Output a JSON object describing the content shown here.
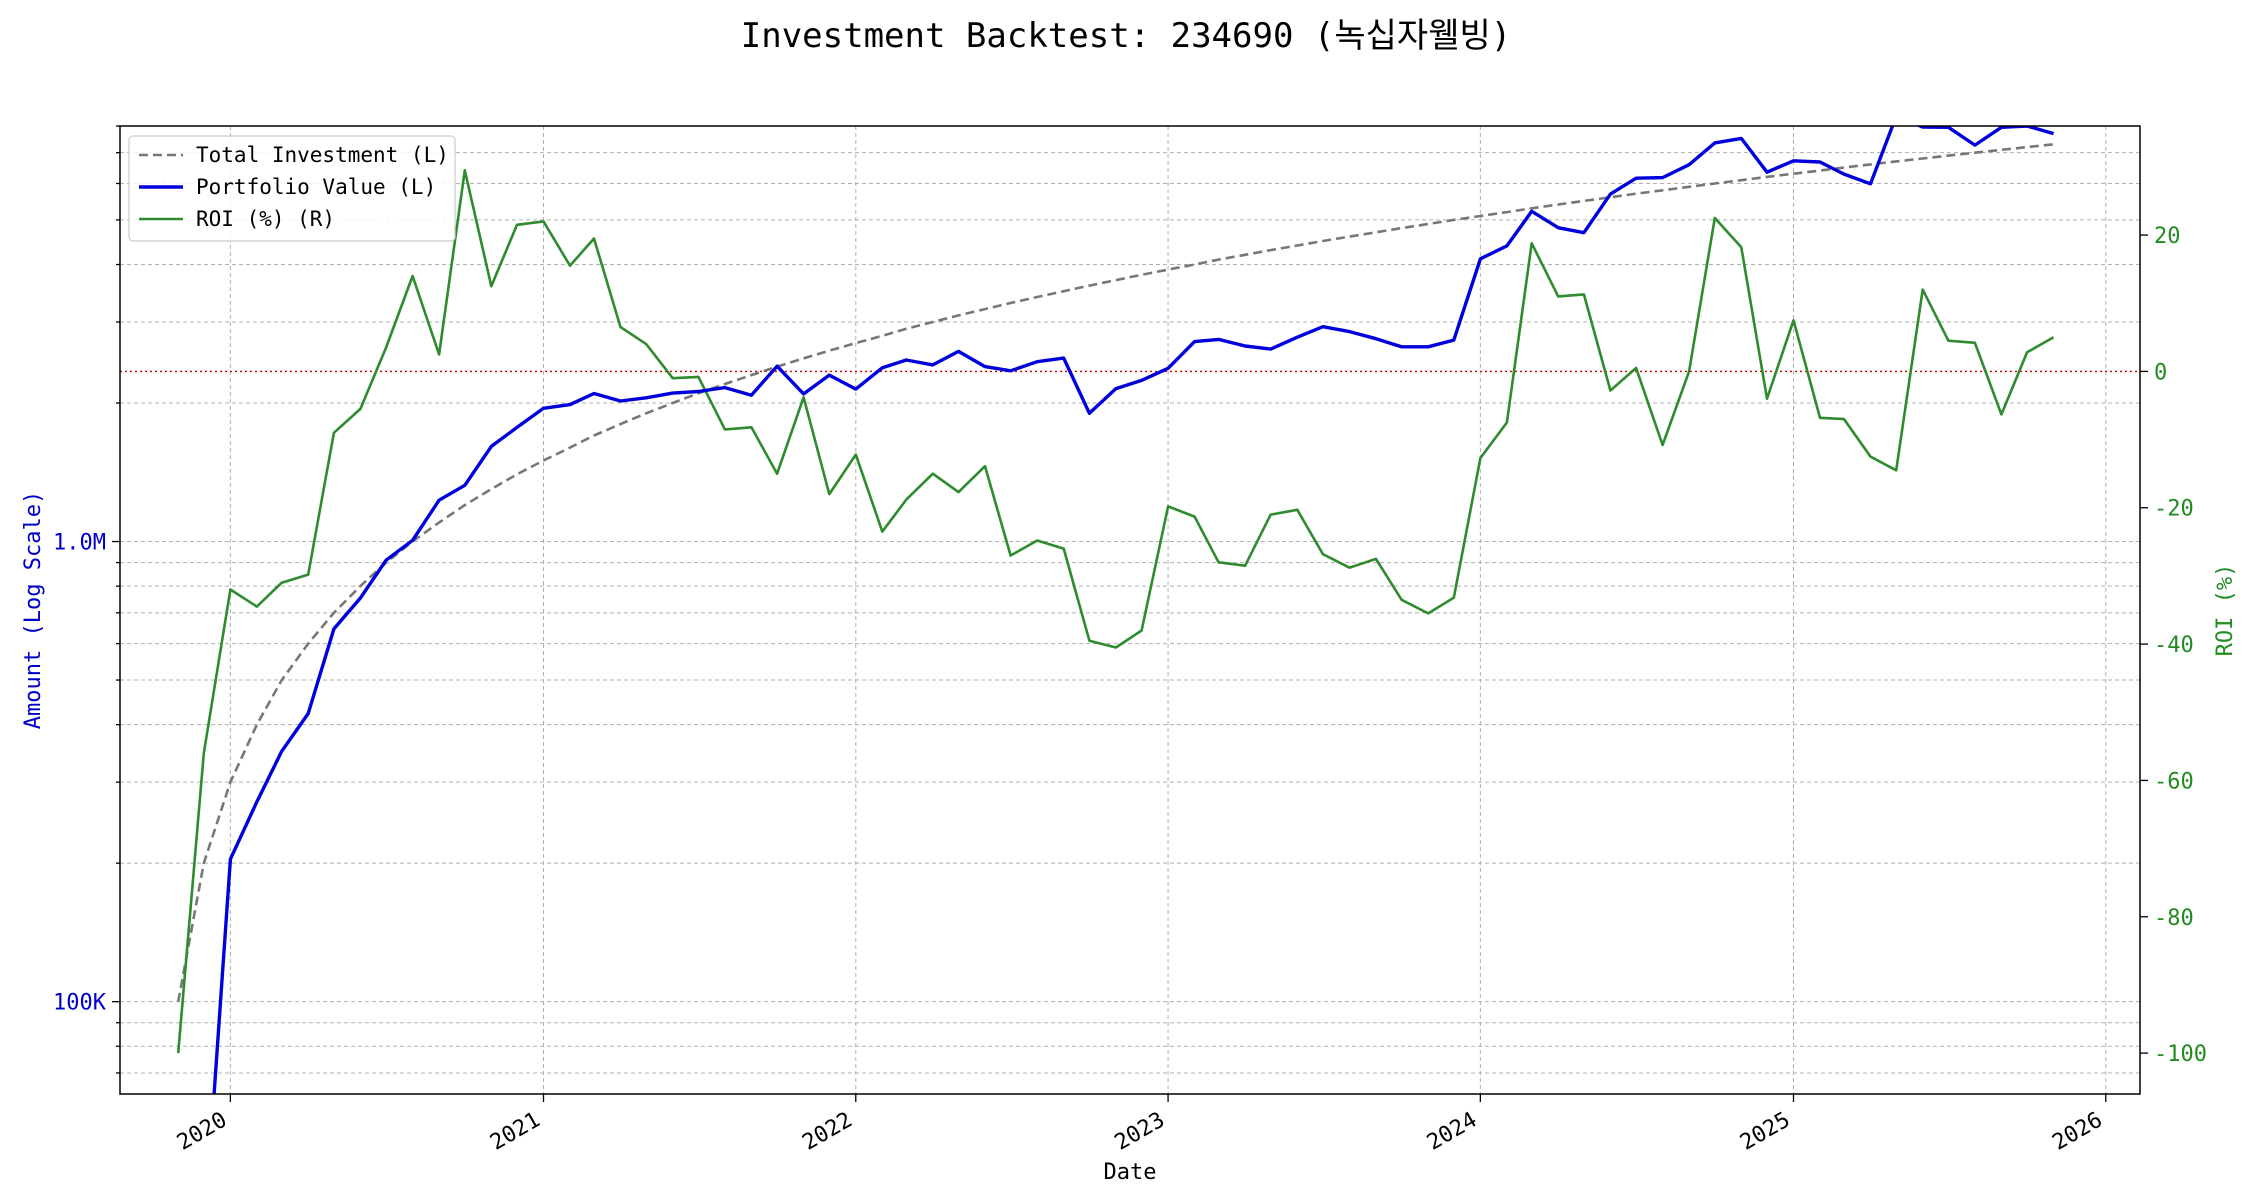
{
  "chart_data": {
    "type": "line",
    "title": "Investment Backtest: 234690 (녹십자웰빙)",
    "xlabel": "Date",
    "ylabel_left": "Amount (Log Scale)",
    "ylabel_right": "ROI (%)",
    "x_ticks": [
      "2020",
      "2021",
      "2022",
      "2023",
      "2024",
      "2025",
      "2026"
    ],
    "xlim": [
      "2019-08-25",
      "2026-02-10"
    ],
    "left_axis": {
      "scale": "log",
      "ylim": [
        63000,
        8000000
      ],
      "tick_labels": [
        {
          "value": 100000,
          "label": "100K"
        },
        {
          "value": 1000000,
          "label": "1.0M"
        }
      ],
      "color": "#0000cc"
    },
    "right_axis": {
      "scale": "linear",
      "ylim": [
        -106,
        36
      ],
      "ticks": [
        -100,
        -80,
        -60,
        -40,
        -20,
        0,
        20
      ],
      "color": "#228B22"
    },
    "zero_line": {
      "axis": "right",
      "value": 0,
      "color": "#cc0000"
    },
    "grid": true,
    "legend": {
      "position": "top-left",
      "entries": [
        {
          "label": "Total Investment (L)",
          "color": "#777777",
          "style": "dashed"
        },
        {
          "label": "Portfolio Value (L)",
          "color": "#0000dd",
          "style": "solid"
        },
        {
          "label": "ROI (%) (R)",
          "color": "#2e8b2e",
          "style": "solid"
        }
      ]
    },
    "series": [
      {
        "name": "Total Investment (L)",
        "axis": "left",
        "color": "#777777",
        "dashed": true,
        "x": [
          "2019-11-01",
          "2019-12-01",
          "2020-01-01",
          "2020-02-01",
          "2020-03-01",
          "2020-04-01",
          "2020-05-01",
          "2020-06-01",
          "2020-07-01",
          "2020-08-01",
          "2020-09-01",
          "2020-10-01",
          "2020-11-01",
          "2020-12-01",
          "2021-01-01",
          "2021-02-01",
          "2021-03-01",
          "2021-04-01",
          "2021-05-01",
          "2021-06-01",
          "2021-07-01",
          "2021-08-01",
          "2021-09-01",
          "2021-10-01",
          "2021-11-01",
          "2021-12-01",
          "2022-01-01",
          "2022-02-01",
          "2022-03-01",
          "2022-04-01",
          "2022-05-01",
          "2022-06-01",
          "2022-07-01",
          "2022-08-01",
          "2022-09-01",
          "2022-10-01",
          "2022-11-01",
          "2022-12-01",
          "2023-01-01",
          "2023-02-01",
          "2023-03-01",
          "2023-04-01",
          "2023-05-01",
          "2023-06-01",
          "2023-07-01",
          "2023-08-01",
          "2023-09-01",
          "2023-10-01",
          "2023-11-01",
          "2023-12-01",
          "2024-01-01",
          "2024-02-01",
          "2024-03-01",
          "2024-04-01",
          "2024-05-01",
          "2024-06-01",
          "2024-07-01",
          "2024-08-01",
          "2024-09-01",
          "2024-10-01",
          "2024-11-01",
          "2024-12-01",
          "2025-01-01",
          "2025-02-01",
          "2025-03-01",
          "2025-04-01",
          "2025-05-01",
          "2025-06-01",
          "2025-07-01",
          "2025-08-01",
          "2025-09-01",
          "2025-10-01",
          "2025-11-01"
        ],
        "values": [
          100000,
          200000,
          300000,
          400000,
          500000,
          600000,
          700000,
          800000,
          900000,
          1000000,
          1100000,
          1200000,
          1300000,
          1400000,
          1500000,
          1600000,
          1700000,
          1800000,
          1900000,
          2000000,
          2100000,
          2200000,
          2300000,
          2400000,
          2500000,
          2600000,
          2700000,
          2800000,
          2900000,
          3000000,
          3100000,
          3200000,
          3300000,
          3400000,
          3500000,
          3600000,
          3700000,
          3800000,
          3900000,
          4000000,
          4100000,
          4200000,
          4300000,
          4400000,
          4500000,
          4600000,
          4700000,
          4800000,
          4900000,
          5000000,
          5100000,
          5200000,
          5300000,
          5400000,
          5500000,
          5600000,
          5700000,
          5800000,
          5900000,
          6000000,
          6100000,
          6200000,
          6300000,
          6400000,
          6500000,
          6600000,
          6700000,
          6800000,
          6900000,
          7000000,
          7100000,
          7200000,
          7300000
        ]
      },
      {
        "name": "Portfolio Value (L)",
        "axis": "left",
        "color": "#0000dd",
        "dashed": false,
        "x": [
          "2019-11-01",
          "2019-12-01",
          "2020-01-01",
          "2020-02-01",
          "2020-03-01",
          "2020-04-01",
          "2020-05-01",
          "2020-06-01",
          "2020-07-01",
          "2020-08-01",
          "2020-09-01",
          "2020-10-01",
          "2020-11-01",
          "2020-12-01",
          "2021-01-01",
          "2021-02-01",
          "2021-03-01",
          "2021-04-01",
          "2021-05-01",
          "2021-06-01",
          "2021-07-01",
          "2021-08-01",
          "2021-09-01",
          "2021-10-01",
          "2021-11-01",
          "2021-12-01",
          "2022-01-01",
          "2022-02-01",
          "2022-03-01",
          "2022-04-01",
          "2022-05-01",
          "2022-06-01",
          "2022-07-01",
          "2022-08-01",
          "2022-09-01",
          "2022-10-01",
          "2022-11-01",
          "2022-12-01",
          "2023-01-01",
          "2023-02-01",
          "2023-03-01",
          "2023-04-01",
          "2023-05-01",
          "2023-06-01",
          "2023-07-01",
          "2023-08-01",
          "2023-09-01",
          "2023-10-01",
          "2023-11-01",
          "2023-12-01",
          "2024-01-01",
          "2024-02-01",
          "2024-03-01",
          "2024-04-01",
          "2024-05-01",
          "2024-06-01",
          "2024-07-01",
          "2024-08-01",
          "2024-09-01",
          "2024-10-01",
          "2024-11-01",
          "2024-12-01",
          "2025-01-01",
          "2025-02-01",
          "2025-03-01",
          "2025-04-01",
          "2025-05-01",
          "2025-06-01",
          "2025-07-01",
          "2025-08-01",
          "2025-09-01",
          "2025-10-01",
          "2025-11-01"
        ],
        "values": [
          null,
          30000,
          204000,
          272000,
          350000,
          423000,
          646000,
          754000,
          911000,
          1006000,
          1230000,
          1325000,
          1610000,
          1770000,
          1948000,
          1984000,
          2098000,
          2020000,
          2053000,
          2102000,
          2119000,
          2160000,
          2080000,
          2405000,
          2093000,
          2300000,
          2144000,
          2385000,
          2480000,
          2420000,
          2590000,
          2400000,
          2350000,
          2460000,
          2504000,
          1900000,
          2150000,
          2240000,
          2380000,
          2720000,
          2750000,
          2660000,
          2620000,
          2780000,
          2930000,
          2860000,
          2760000,
          2650000,
          2650000,
          2740000,
          4115000,
          4390000,
          5220000,
          4810000,
          4690000,
          5690000,
          6160000,
          6180000,
          6590000,
          7350000,
          7520000,
          6350000,
          6720000,
          6680000,
          6290000,
          5990000,
          8400000,
          7960000,
          7950000,
          7270000,
          7950000,
          8000000,
          7700000
        ]
      },
      {
        "name": "ROI (%) (R)",
        "axis": "right",
        "color": "#2e8b2e",
        "dashed": false,
        "x": [
          "2019-11-01",
          "2019-12-01",
          "2020-01-01",
          "2020-02-01",
          "2020-03-01",
          "2020-04-01",
          "2020-05-01",
          "2020-06-01",
          "2020-07-01",
          "2020-08-01",
          "2020-09-01",
          "2020-10-01",
          "2020-11-01",
          "2020-12-01",
          "2021-01-01",
          "2021-02-01",
          "2021-03-01",
          "2021-04-01",
          "2021-05-01",
          "2021-06-01",
          "2021-07-01",
          "2021-08-01",
          "2021-09-01",
          "2021-10-01",
          "2021-11-01",
          "2021-12-01",
          "2022-01-01",
          "2022-02-01",
          "2022-03-01",
          "2022-04-01",
          "2022-05-01",
          "2022-06-01",
          "2022-07-01",
          "2022-08-01",
          "2022-09-01",
          "2022-10-01",
          "2022-11-01",
          "2022-12-01",
          "2023-01-01",
          "2023-02-01",
          "2023-03-01",
          "2023-04-01",
          "2023-05-01",
          "2023-06-01",
          "2023-07-01",
          "2023-08-01",
          "2023-09-01",
          "2023-10-01",
          "2023-11-01",
          "2023-12-01",
          "2024-01-01",
          "2024-02-01",
          "2024-03-01",
          "2024-04-01",
          "2024-05-01",
          "2024-06-01",
          "2024-07-01",
          "2024-08-01",
          "2024-09-01",
          "2024-10-01",
          "2024-11-01",
          "2024-12-01",
          "2025-01-01",
          "2025-02-01",
          "2025-03-01",
          "2025-04-01",
          "2025-05-01",
          "2025-06-01",
          "2025-07-01",
          "2025-08-01",
          "2025-09-01",
          "2025-10-01",
          "2025-11-01"
        ],
        "values": [
          -100,
          -56,
          -32,
          -34.5,
          -31,
          -29.8,
          -9,
          -5.5,
          3.5,
          14,
          2.5,
          29.5,
          12.5,
          21.5,
          22,
          15.5,
          19.5,
          6.5,
          4,
          -1,
          -0.8,
          -8.5,
          -8.2,
          -15,
          -3.8,
          -18,
          -12.2,
          -23.5,
          -18.8,
          -15,
          -17.7,
          -13.9,
          -27,
          -24.8,
          -26,
          -39.5,
          -40.5,
          -38,
          -19.8,
          -21.3,
          -28,
          -28.5,
          -21,
          -20.3,
          -26.8,
          -28.8,
          -27.5,
          -33.5,
          -35.5,
          -33.2,
          -12.7,
          -7.5,
          18.8,
          11,
          11.3,
          -2.8,
          0.5,
          -10.8,
          0,
          22.5,
          18.2,
          -4,
          7.5,
          -6.8,
          -7,
          -12.5,
          -14.5,
          12,
          4.5,
          4.2,
          -6.3,
          2.8,
          5
        ]
      }
    ]
  }
}
